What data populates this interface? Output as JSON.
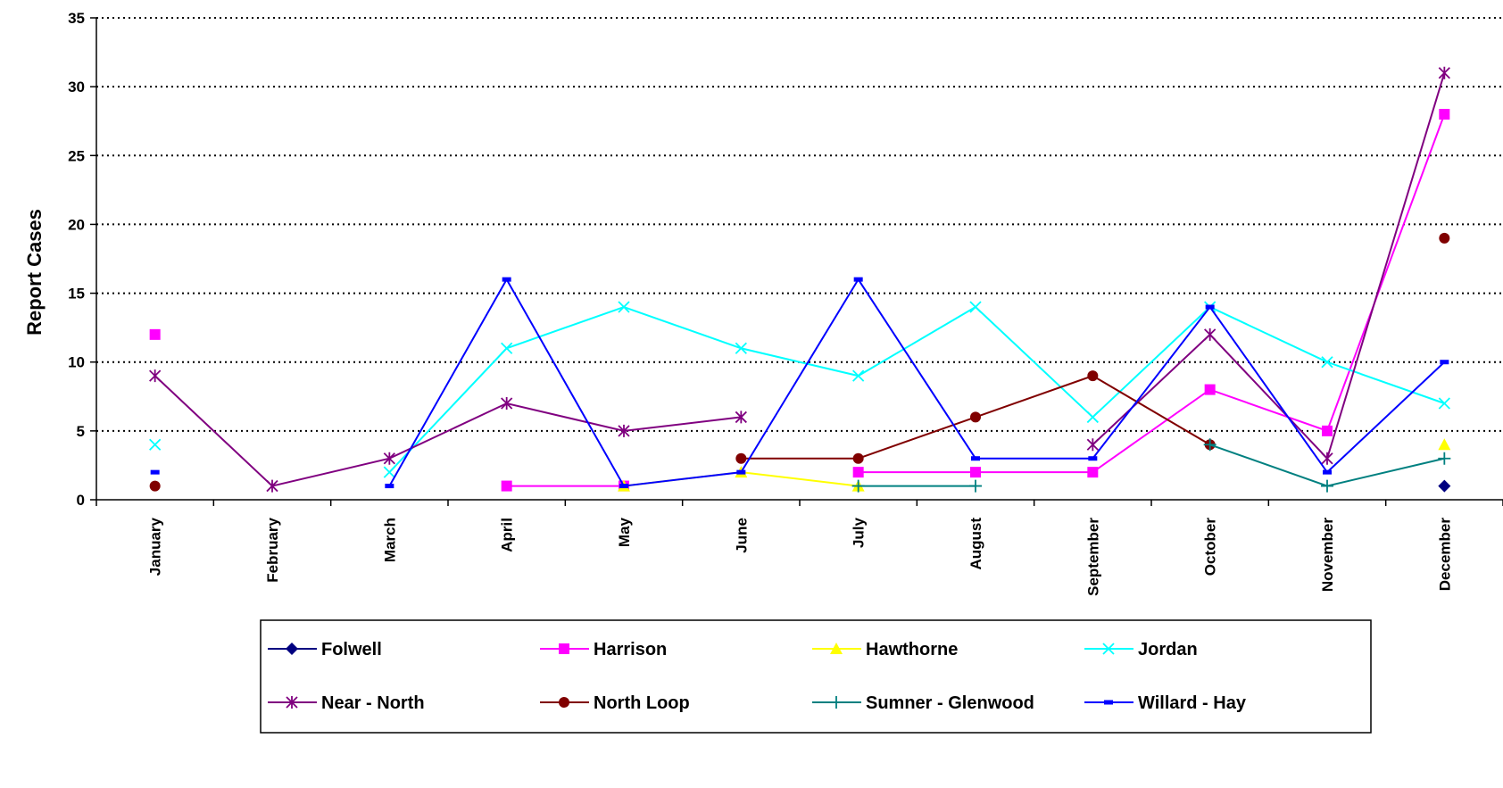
{
  "chart_data": {
    "type": "line",
    "title": "",
    "xlabel": "",
    "ylabel": "Report Cases",
    "ylim": [
      0,
      35
    ],
    "yticks": [
      0,
      5,
      10,
      15,
      20,
      25,
      30,
      35
    ],
    "grid": "horizontal-dotted",
    "legend_position": "bottom",
    "categories": [
      "January",
      "February",
      "March",
      "April",
      "May",
      "June",
      "July",
      "August",
      "September",
      "October",
      "November",
      "December"
    ],
    "series": [
      {
        "name": "Folwell",
        "color": "#000080",
        "marker": "diamond",
        "values": [
          null,
          null,
          null,
          null,
          null,
          null,
          null,
          null,
          null,
          null,
          null,
          1
        ]
      },
      {
        "name": "Harrison",
        "color": "#FF00FF",
        "marker": "square",
        "values": [
          12,
          null,
          null,
          1,
          1,
          null,
          2,
          2,
          2,
          8,
          5,
          28
        ]
      },
      {
        "name": "Hawthorne",
        "color": "#FFFF00",
        "marker": "triangle",
        "values": [
          null,
          null,
          null,
          null,
          1,
          2,
          1,
          null,
          null,
          null,
          null,
          4
        ]
      },
      {
        "name": "Jordan",
        "color": "#00FFFF",
        "marker": "x",
        "values": [
          4,
          null,
          2,
          11,
          14,
          11,
          9,
          14,
          6,
          14,
          10,
          7
        ]
      },
      {
        "name": "Near - North",
        "color": "#800080",
        "marker": "asterisk",
        "values": [
          9,
          1,
          3,
          7,
          5,
          6,
          null,
          null,
          4,
          12,
          3,
          31
        ]
      },
      {
        "name": "North Loop",
        "color": "#800000",
        "marker": "circle",
        "values": [
          1,
          null,
          null,
          null,
          null,
          3,
          3,
          6,
          9,
          4,
          null,
          19
        ]
      },
      {
        "name": "Sumner - Glenwood",
        "color": "#008080",
        "marker": "plus",
        "values": [
          null,
          null,
          null,
          null,
          null,
          null,
          1,
          1,
          null,
          4,
          1,
          3
        ]
      },
      {
        "name": "Willard - Hay",
        "color": "#0000FF",
        "marker": "dash",
        "values": [
          2,
          null,
          1,
          16,
          1,
          2,
          16,
          3,
          3,
          14,
          2,
          10
        ]
      }
    ]
  }
}
